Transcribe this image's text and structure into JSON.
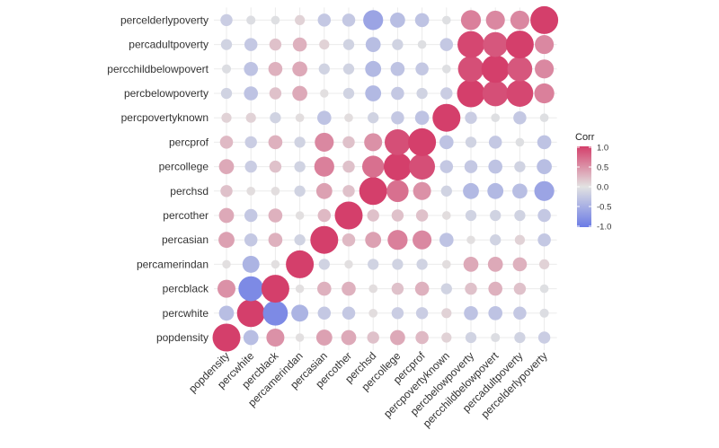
{
  "chart_data": {
    "type": "heatmap",
    "style": "circle",
    "variables": [
      "popdensity",
      "percwhite",
      "percblack",
      "percamerindan",
      "percasian",
      "percother",
      "perchsd",
      "percollege",
      "percprof",
      "percpovertyknown",
      "percbelowpoverty",
      "percchildbelowpovert",
      "percadultpoverty",
      "percelderlypoverty"
    ],
    "matrix": [
      [
        1.0,
        -0.35,
        0.5,
        0.02,
        0.4,
        0.35,
        0.2,
        0.35,
        0.25,
        0.1,
        -0.15,
        -0.05,
        -0.15,
        -0.2
      ],
      [
        -0.35,
        1.0,
        -0.85,
        -0.45,
        -0.25,
        -0.25,
        0.03,
        -0.2,
        -0.2,
        0.1,
        -0.3,
        -0.3,
        -0.25,
        -0.05
      ],
      [
        0.5,
        -0.85,
        1.0,
        0.02,
        0.3,
        0.3,
        0.03,
        0.2,
        0.3,
        -0.15,
        0.2,
        0.3,
        0.2,
        -0.03
      ],
      [
        0.02,
        -0.45,
        0.02,
        1.0,
        -0.15,
        0.02,
        -0.15,
        -0.15,
        -0.15,
        0.03,
        0.35,
        0.35,
        0.3,
        0.1
      ],
      [
        0.4,
        -0.25,
        0.3,
        -0.15,
        1.0,
        0.25,
        0.4,
        0.6,
        0.55,
        -0.3,
        0.02,
        -0.15,
        0.1,
        -0.25
      ],
      [
        0.35,
        -0.25,
        0.3,
        0.02,
        0.25,
        1.0,
        0.2,
        0.2,
        0.2,
        0.03,
        -0.15,
        -0.15,
        -0.15,
        -0.25
      ],
      [
        0.2,
        0.03,
        0.03,
        -0.15,
        0.4,
        0.2,
        1.0,
        0.7,
        0.5,
        -0.15,
        -0.4,
        -0.4,
        -0.35,
        -0.6
      ],
      [
        0.35,
        -0.2,
        0.2,
        -0.15,
        0.6,
        0.2,
        0.7,
        1.0,
        0.9,
        -0.25,
        -0.25,
        -0.3,
        -0.15,
        -0.35
      ],
      [
        0.25,
        -0.2,
        0.3,
        -0.15,
        0.55,
        0.2,
        0.5,
        0.9,
        1.0,
        -0.3,
        -0.15,
        -0.25,
        -0.03,
        -0.3
      ],
      [
        0.1,
        0.1,
        -0.15,
        0.03,
        -0.3,
        0.03,
        -0.15,
        -0.25,
        -0.3,
        1.0,
        -0.2,
        -0.03,
        -0.25,
        -0.03
      ],
      [
        -0.15,
        -0.3,
        0.2,
        0.35,
        0.02,
        -0.15,
        -0.4,
        -0.25,
        -0.15,
        -0.2,
        1.0,
        0.9,
        0.95,
        0.6
      ],
      [
        -0.05,
        -0.3,
        0.3,
        0.35,
        -0.15,
        -0.15,
        -0.4,
        -0.3,
        -0.25,
        -0.03,
        0.9,
        1.0,
        0.85,
        0.55
      ],
      [
        -0.15,
        -0.25,
        0.2,
        0.3,
        0.1,
        -0.15,
        -0.35,
        -0.15,
        -0.03,
        -0.25,
        0.95,
        0.85,
        1.0,
        0.55
      ],
      [
        -0.2,
        -0.05,
        -0.03,
        0.1,
        -0.25,
        -0.25,
        -0.6,
        -0.35,
        -0.3,
        -0.03,
        0.6,
        0.55,
        0.55,
        1.0
      ]
    ],
    "legend": {
      "title": "Corr",
      "ticks": [
        "1.0",
        "0.5",
        "0.0",
        "-0.5",
        "-1.0"
      ],
      "placement": "right"
    },
    "colors": {
      "low": "#6B7BE5",
      "mid": "#E2E2E2",
      "high": "#D43F6B"
    },
    "range": [
      -1,
      1
    ],
    "grid": true
  }
}
